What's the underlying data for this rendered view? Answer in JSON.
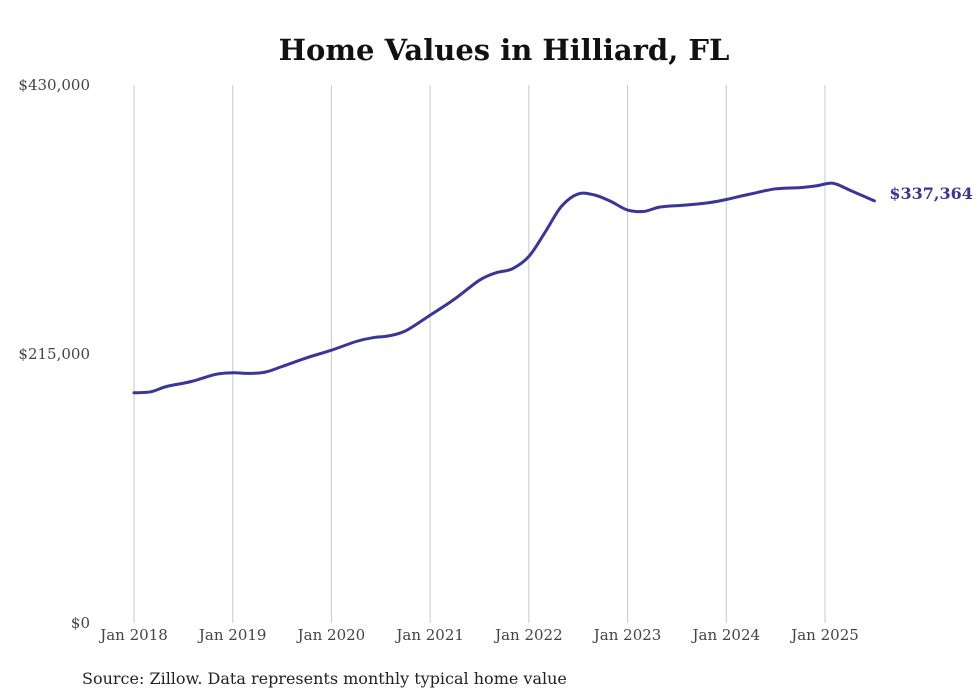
{
  "chart_data": {
    "type": "line",
    "title": "Home Values in Hilliard, FL",
    "xlabel": "",
    "ylabel": "",
    "ylim": [
      0,
      430000
    ],
    "yticks": [
      {
        "value": 0,
        "label": "$0"
      },
      {
        "value": 215000,
        "label": "$215,000"
      },
      {
        "value": 430000,
        "label": "$430,000"
      }
    ],
    "xticks": [
      {
        "value": 2018.0,
        "label": "Jan 2018"
      },
      {
        "value": 2019.0,
        "label": "Jan 2019"
      },
      {
        "value": 2020.0,
        "label": "Jan 2020"
      },
      {
        "value": 2021.0,
        "label": "Jan 2021"
      },
      {
        "value": 2022.0,
        "label": "Jan 2022"
      },
      {
        "value": 2023.0,
        "label": "Jan 2023"
      },
      {
        "value": 2024.0,
        "label": "Jan 2024"
      },
      {
        "value": 2025.0,
        "label": "Jan 2025"
      }
    ],
    "grid": "vertical",
    "legend": "none",
    "series": [
      {
        "color": "#3a3597",
        "end_label": "$337,364",
        "points": [
          [
            2018.0,
            184000
          ],
          [
            2018.17,
            184800
          ],
          [
            2018.33,
            189000
          ],
          [
            2018.58,
            193000
          ],
          [
            2018.83,
            198800
          ],
          [
            2019.0,
            200000
          ],
          [
            2019.17,
            199500
          ],
          [
            2019.33,
            200500
          ],
          [
            2019.5,
            205000
          ],
          [
            2019.75,
            212000
          ],
          [
            2020.0,
            218000
          ],
          [
            2020.25,
            225000
          ],
          [
            2020.42,
            228000
          ],
          [
            2020.58,
            229500
          ],
          [
            2020.75,
            233500
          ],
          [
            2021.0,
            246000
          ],
          [
            2021.25,
            259000
          ],
          [
            2021.5,
            274000
          ],
          [
            2021.67,
            280000
          ],
          [
            2021.83,
            283000
          ],
          [
            2022.0,
            293000
          ],
          [
            2022.17,
            313000
          ],
          [
            2022.33,
            333000
          ],
          [
            2022.5,
            343000
          ],
          [
            2022.67,
            342000
          ],
          [
            2022.83,
            337000
          ],
          [
            2023.0,
            330000
          ],
          [
            2023.17,
            329000
          ],
          [
            2023.33,
            332500
          ],
          [
            2023.58,
            334000
          ],
          [
            2023.83,
            336000
          ],
          [
            2024.0,
            338500
          ],
          [
            2024.25,
            343000
          ],
          [
            2024.5,
            347000
          ],
          [
            2024.75,
            348000
          ],
          [
            2024.92,
            349500
          ],
          [
            2025.08,
            351500
          ],
          [
            2025.25,
            346000
          ],
          [
            2025.5,
            337364
          ]
        ]
      }
    ]
  },
  "footer": {
    "source": "Source: Zillow. Data represents monthly typical home value"
  }
}
